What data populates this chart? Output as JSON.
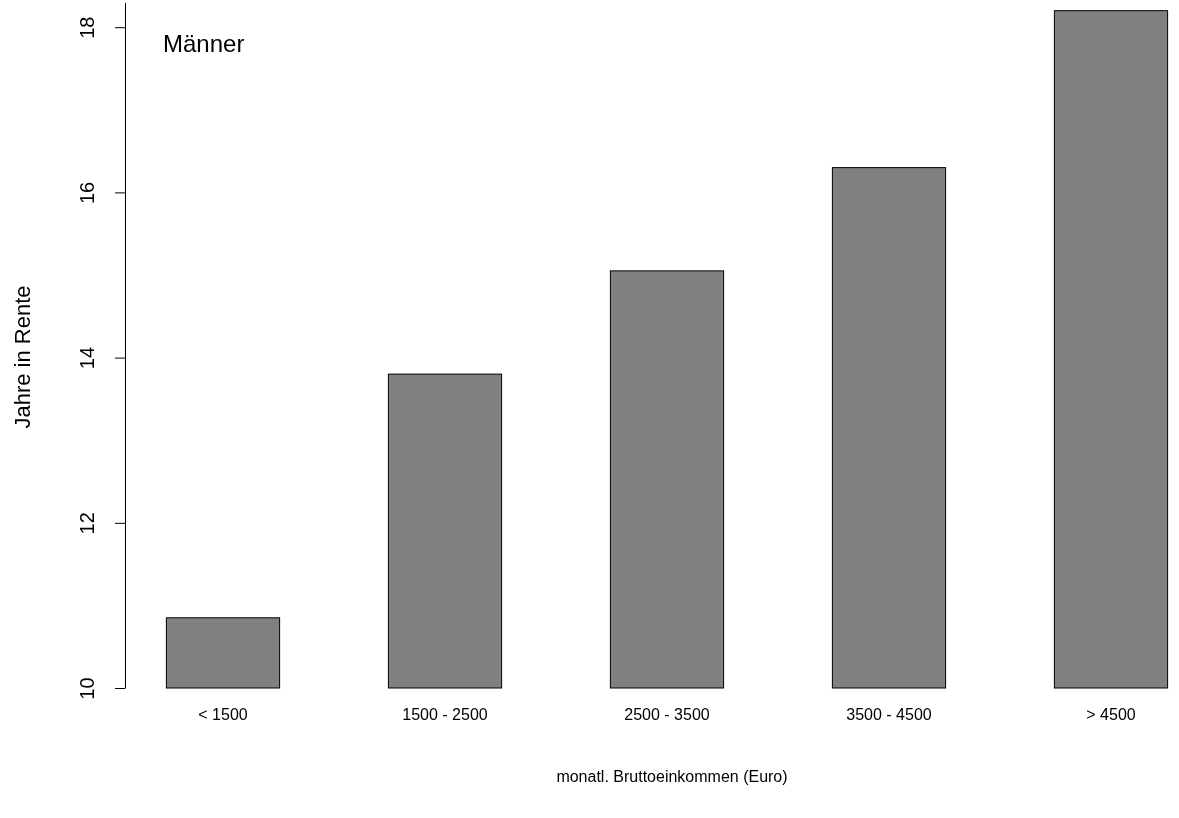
{
  "chart_data": {
    "type": "bar",
    "categories": [
      "< 1500",
      "1500 - 2500",
      "2500 - 3500",
      "3500 - 4500",
      "> 4500"
    ],
    "values": [
      10.85,
      13.8,
      15.05,
      16.3,
      18.2
    ],
    "color": "#808080",
    "ylim": [
      10,
      18.3
    ],
    "yticks": [
      10,
      12,
      14,
      16,
      18
    ],
    "xlabel": "monatl. Bruttoeinkommen (Euro)",
    "ylabel": "Jahre in Rente",
    "annotations": [
      "Männer"
    ],
    "grid": false
  }
}
